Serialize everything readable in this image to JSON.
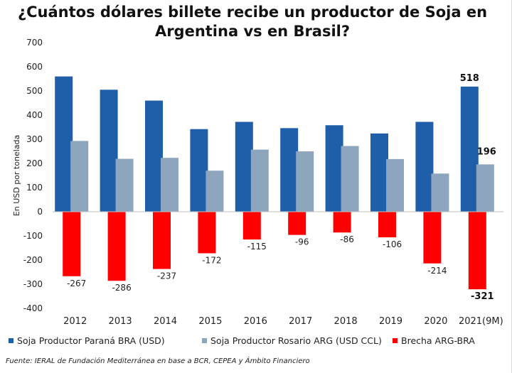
{
  "title": "¿Cuántos dólares billete recibe un productor de Soja en Argentina vs en Brasil?",
  "source": "Fuente: IERAL de Fundación Mediterránea en base a BCR, CEPEA y Ámbito Financiero",
  "colors": {
    "brasil": "#1f5ea8",
    "argentina": "#8da6be",
    "brecha": "#ff0000"
  },
  "chart_data": {
    "type": "bar",
    "title": "¿Cuántos dólares billete recibe un productor de Soja en Argentina vs en Brasil?",
    "ylabel": "En USD por tonelada",
    "xlabel": "",
    "ylim": [
      -400,
      700
    ],
    "yticks": [
      700,
      600,
      500,
      400,
      300,
      200,
      100,
      0,
      -100,
      -200,
      -300,
      -400
    ],
    "grid": true,
    "legend_position": "bottom",
    "categories": [
      "2012",
      "2013",
      "2014",
      "2015",
      "2016",
      "2017",
      "2018",
      "2019",
      "2020",
      "2021(9M)"
    ],
    "series": [
      {
        "name": "Soja Productor Paraná BRA (USD)",
        "values": [
          560,
          505,
          460,
          342,
          372,
          346,
          358,
          324,
          372,
          518
        ]
      },
      {
        "name": "Soja Productor Rosario ARG (USD CCL)",
        "values": [
          293,
          219,
          223,
          170,
          257,
          250,
          272,
          218,
          158,
          196
        ]
      },
      {
        "name": "Brecha ARG-BRA",
        "values": [
          -267,
          -286,
          -237,
          -172,
          -115,
          -96,
          -86,
          -106,
          -214,
          -321
        ]
      }
    ],
    "data_labels": {
      "brecha": [
        "-267",
        "-286",
        "-237",
        "-172",
        "-115",
        "-96",
        "-86",
        "-106",
        "-214",
        "-321"
      ],
      "brasil_last": "518",
      "argentina_last": "196"
    }
  }
}
